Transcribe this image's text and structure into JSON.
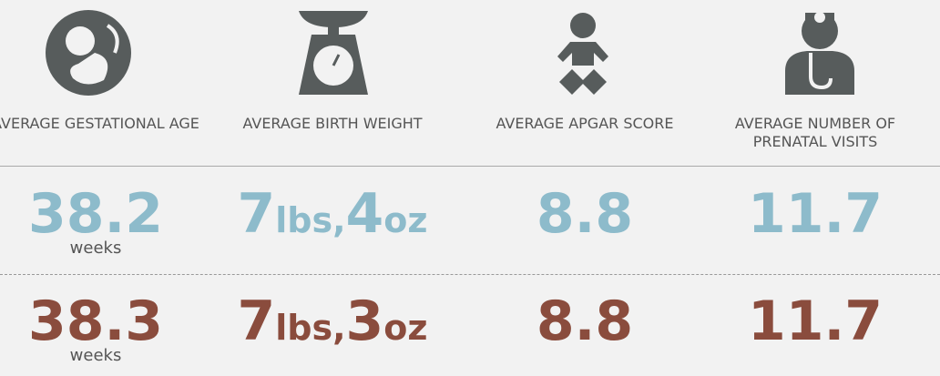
{
  "columns": [
    {
      "label": "AVERAGE GESTATIONAL AGE"
    },
    {
      "label": "AVERAGE BIRTH WEIGHT"
    },
    {
      "label": "AVERAGE APGAR SCORE"
    },
    {
      "label": "AVERAGE NUMBER OF PRENATAL VISITS"
    }
  ],
  "rows": [
    {
      "color": "#8dbbcb",
      "cells": [
        {
          "value": "38.2",
          "unit": "weeks"
        },
        {
          "parts": [
            "7",
            "lbs,",
            "4",
            "oz"
          ]
        },
        {
          "value": "8.8"
        },
        {
          "value": "11.7"
        }
      ]
    },
    {
      "color": "#8a4c3d",
      "cells": [
        {
          "value": "38.3",
          "unit": "weeks"
        },
        {
          "parts": [
            "7",
            "lbs,",
            "3",
            "oz"
          ]
        },
        {
          "value": "8.8"
        },
        {
          "value": "11.7"
        }
      ]
    }
  ]
}
